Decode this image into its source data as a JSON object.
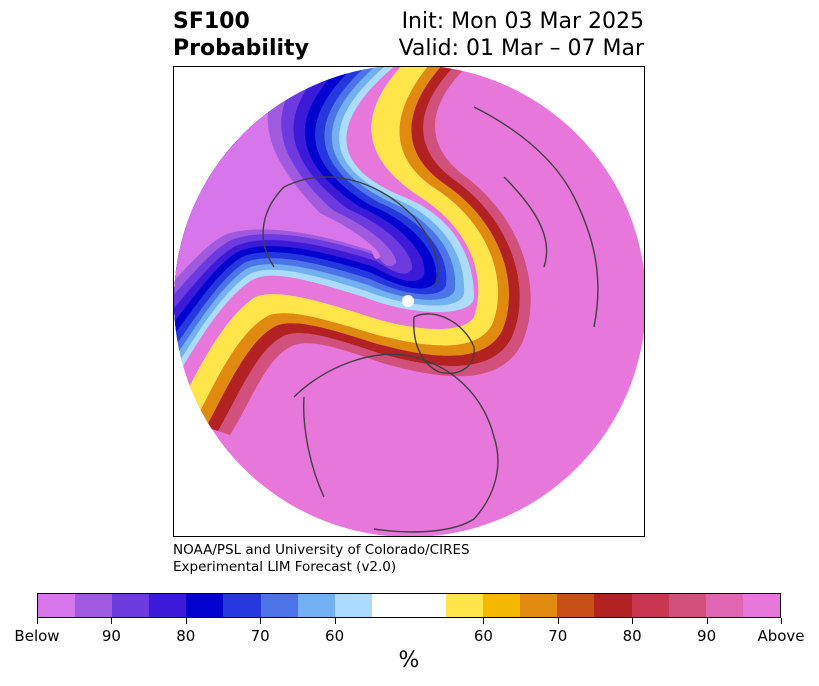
{
  "title": {
    "variable": "SF100",
    "product": "Probability",
    "init": "Init: Mon 03 Mar 2025",
    "valid": "Valid: 01 Mar – 07 Mar"
  },
  "credit": {
    "line1": "NOAA/PSL and University of Colorado/CIRES",
    "line2": "Experimental LIM Forecast (v2.0)"
  },
  "colorbar": {
    "colors": [
      "#d775ea",
      "#a05ae0",
      "#6d3ae0",
      "#3b1bd8",
      "#0303d0",
      "#2438de",
      "#4c74e8",
      "#73b0f2",
      "#acdcfb",
      "#ffffff",
      "#ffffff",
      "#ffe44a",
      "#f4b800",
      "#e08a10",
      "#c85018",
      "#b22222",
      "#c83550",
      "#d2507c",
      "#df66b2",
      "#e877dc"
    ],
    "ticks": [
      "Below",
      "90",
      "80",
      "70",
      "60",
      "60",
      "70",
      "80",
      "90",
      "Above"
    ],
    "unit": "%"
  },
  "map": {
    "colors": {
      "above": "#e877dc",
      "below": "#d775ea",
      "warm": [
        "#ffe44a",
        "#f4b800",
        "#e08a10",
        "#c85018",
        "#b22222",
        "#c83550",
        "#d2507c"
      ],
      "cold": [
        "#acdcfb",
        "#73b0f2",
        "#4c74e8",
        "#2438de",
        "#0303d0",
        "#3b1bd8",
        "#6d3ae0",
        "#a05ae0"
      ]
    }
  }
}
